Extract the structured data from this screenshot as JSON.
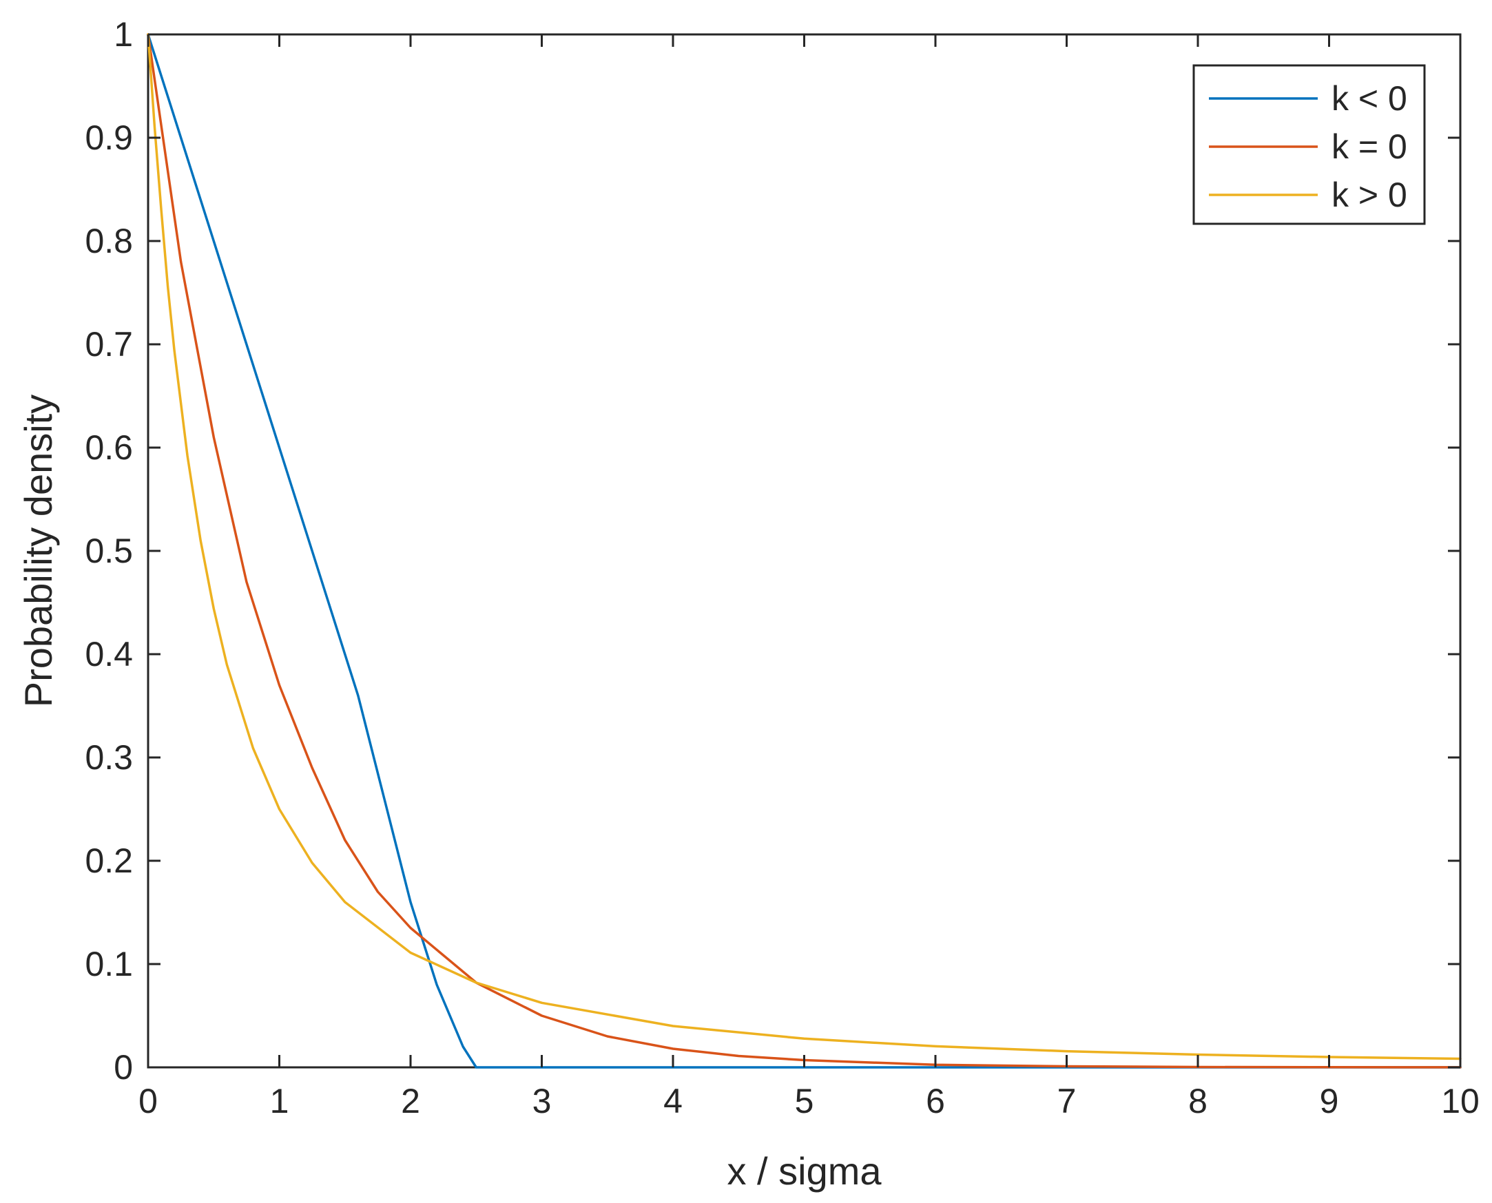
{
  "chart_data": {
    "type": "line",
    "title": "",
    "xlabel": "x / sigma",
    "ylabel": "Probability density",
    "xlim": [
      0,
      10
    ],
    "ylim": [
      0,
      1
    ],
    "xticks": [
      0,
      1,
      2,
      3,
      4,
      5,
      6,
      7,
      8,
      9,
      10
    ],
    "yticks": [
      0,
      0.1,
      0.2,
      0.3,
      0.4,
      0.5,
      0.6,
      0.7,
      0.8,
      0.9,
      1
    ],
    "xtick_labels": [
      "0",
      "1",
      "2",
      "3",
      "4",
      "5",
      "6",
      "7",
      "8",
      "9",
      "10"
    ],
    "ytick_labels": [
      "0",
      "0.1",
      "0.2",
      "0.3",
      "0.4",
      "0.5",
      "0.6",
      "0.7",
      "0.8",
      "0.9",
      "1"
    ],
    "grid": false,
    "legend_position": "top-right",
    "series": [
      {
        "name": "k < 0",
        "color": "#0072BD",
        "x": [
          0,
          0.2,
          0.4,
          0.6,
          0.8,
          1.0,
          1.2,
          1.4,
          1.6,
          1.8,
          2.0,
          2.2,
          2.4,
          2.5,
          3,
          4,
          5,
          6,
          7,
          8,
          9,
          10
        ],
        "y": [
          1,
          0.92,
          0.84,
          0.76,
          0.68,
          0.6,
          0.52,
          0.44,
          0.36,
          0.26,
          0.16,
          0.08,
          0.02,
          0,
          0,
          0,
          0,
          0,
          0,
          0,
          0,
          0
        ]
      },
      {
        "name": "k = 0",
        "color": "#D95319",
        "x": [
          0,
          0.25,
          0.5,
          0.75,
          1.0,
          1.25,
          1.5,
          1.75,
          2.0,
          2.5,
          3.0,
          3.5,
          4.0,
          4.5,
          5.0,
          6.0,
          7.0,
          8.0,
          9.0,
          10.0
        ],
        "y": [
          1,
          0.78,
          0.61,
          0.47,
          0.37,
          0.29,
          0.22,
          0.17,
          0.135,
          0.082,
          0.05,
          0.03,
          0.018,
          0.011,
          0.007,
          0.0025,
          0.001,
          0.0003,
          0.0001,
          5e-05
        ]
      },
      {
        "name": "k > 0",
        "color": "#EDB120",
        "x": [
          0,
          0.05,
          0.1,
          0.15,
          0.2,
          0.3,
          0.4,
          0.5,
          0.6,
          0.8,
          1.0,
          1.25,
          1.5,
          2.0,
          2.5,
          3.0,
          4.0,
          5.0,
          6.0,
          7.0,
          8.0,
          9.0,
          10.0
        ],
        "y": [
          1,
          0.91,
          0.83,
          0.756,
          0.694,
          0.592,
          0.51,
          0.444,
          0.39,
          0.309,
          0.25,
          0.198,
          0.16,
          0.111,
          0.082,
          0.0625,
          0.04,
          0.0278,
          0.0204,
          0.0156,
          0.0123,
          0.01,
          0.0083
        ]
      }
    ]
  }
}
